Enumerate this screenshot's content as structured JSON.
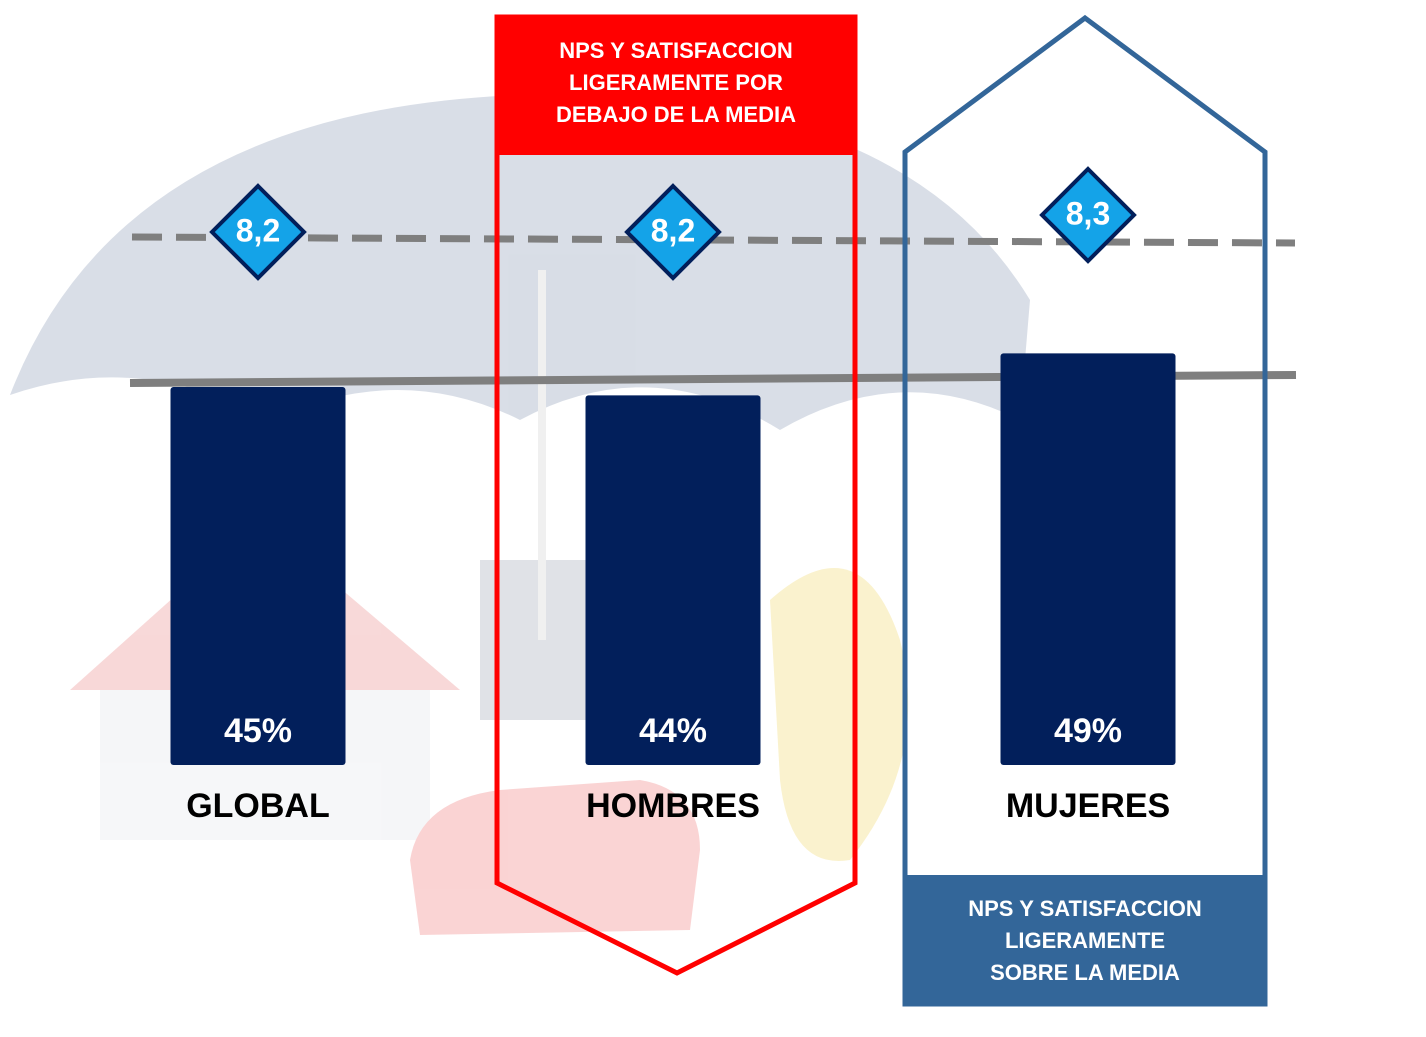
{
  "chart_data": {
    "type": "bar",
    "categories": [
      "GLOBAL",
      "HOMBRES",
      "MUJERES"
    ],
    "values": [
      45,
      44,
      49
    ],
    "value_labels": [
      "45%",
      "44%",
      "49%"
    ],
    "color": "#021f5b",
    "scores": {
      "values": [
        8.2,
        8.2,
        8.3
      ],
      "value_labels": [
        "8,2",
        "8,2",
        "8,3"
      ],
      "color": "#14a3e8"
    },
    "callouts": [
      {
        "lines": [
          "NPS Y SATISFACCION",
          "LIGERAMENTE POR",
          "DEBAJO DE LA MEDIA"
        ],
        "color": "#ff0000"
      },
      {
        "lines": [
          "NPS Y SATISFACCION",
          "LIGERAMENTE",
          "SOBRE LA MEDIA"
        ],
        "color": "#336699"
      }
    ]
  }
}
